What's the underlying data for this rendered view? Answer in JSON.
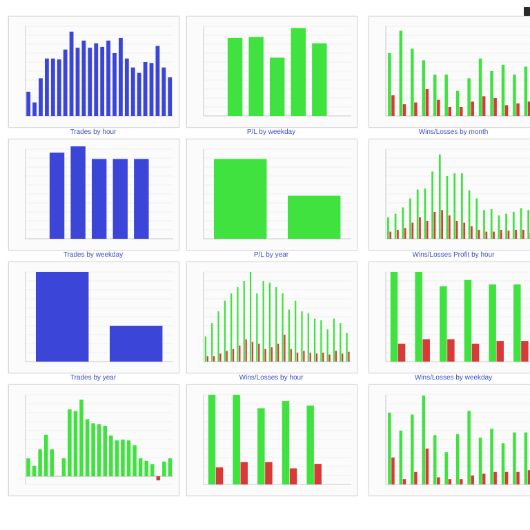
{
  "colors": {
    "blue": "#3b46d9",
    "green": "#3fe23f",
    "red": "#d83a3a",
    "caption": "#3a4fc0",
    "grid": "#e4e4e4"
  },
  "corner_icon": "window-control-icon",
  "panels": [
    {
      "caption": "Trades by hour"
    },
    {
      "caption": "P/L by weekday"
    },
    {
      "caption": "Wins/Losses by month"
    },
    {
      "caption": "Trades by weekday"
    },
    {
      "caption": "P/L by year"
    },
    {
      "caption": "Wins/Losses Profit by hour"
    },
    {
      "caption": "Trades by year"
    },
    {
      "caption": "Wins/Losses by hour"
    },
    {
      "caption": "Wins/Losses by weekday"
    },
    {
      "caption": ""
    },
    {
      "caption": ""
    },
    {
      "caption": ""
    }
  ],
  "chart_data": [
    {
      "type": "bar",
      "ylim": [
        0,
        100
      ],
      "colors": [
        "#3b46d9"
      ],
      "series": [
        {
          "values": [
            27,
            15,
            42,
            64,
            64,
            63,
            74,
            94,
            76,
            84,
            76,
            81,
            77,
            84,
            70,
            87,
            64,
            54,
            48,
            60,
            59,
            78,
            54,
            43
          ]
        }
      ]
    },
    {
      "type": "bar",
      "ylim": [
        0,
        100
      ],
      "colors": [
        "#3fe23f"
      ],
      "series": [
        {
          "values": [
            0,
            87,
            88,
            65,
            98,
            81,
            0
          ]
        }
      ]
    },
    {
      "type": "bar",
      "ylim": [
        0,
        100
      ],
      "colors": [
        "#3fe23f",
        "#d83a3a"
      ],
      "series": [
        {
          "values": [
            70,
            95,
            75,
            62,
            46,
            46,
            28,
            42,
            64,
            50,
            57,
            46,
            55
          ]
        },
        {
          "values": [
            23,
            13,
            15,
            30,
            18,
            10,
            10,
            16,
            22,
            20,
            12,
            14,
            16
          ]
        }
      ]
    },
    {
      "type": "bar",
      "ylim": [
        0,
        100
      ],
      "colors": [
        "#3b46d9"
      ],
      "series": [
        {
          "values": [
            0,
            96,
            103,
            89,
            89,
            89,
            0
          ]
        }
      ]
    },
    {
      "type": "bar",
      "ylim": [
        0,
        100
      ],
      "colors": [
        "#3fe23f"
      ],
      "series": [
        {
          "values": [
            89,
            48
          ]
        }
      ]
    },
    {
      "type": "bar",
      "ylim": [
        0,
        100
      ],
      "colors": [
        "#3fe23f",
        "#d83a3a"
      ],
      "series": [
        {
          "values": [
            24,
            28,
            35,
            45,
            55,
            56,
            75,
            94,
            70,
            73,
            73,
            54,
            45,
            32,
            33,
            26,
            28,
            30,
            34,
            32
          ]
        },
        {
          "values": [
            8,
            10,
            12,
            18,
            24,
            20,
            30,
            32,
            26,
            20,
            18,
            14,
            10,
            8,
            8,
            10,
            9,
            10,
            10,
            6
          ]
        }
      ]
    },
    {
      "type": "bar",
      "ylim": [
        0,
        100
      ],
      "colors": [
        "#3b46d9"
      ],
      "series": [
        {
          "values": [
            100,
            40
          ]
        }
      ]
    },
    {
      "type": "bar",
      "ylim": [
        0,
        100
      ],
      "colors": [
        "#3fe23f",
        "#d83a3a"
      ],
      "series": [
        {
          "values": [
            28,
            43,
            56,
            68,
            76,
            83,
            90,
            100,
            76,
            90,
            88,
            83,
            76,
            58,
            68,
            56,
            54,
            48,
            46,
            36,
            48,
            43,
            32
          ]
        },
        {
          "values": [
            6,
            6,
            9,
            12,
            14,
            18,
            25,
            22,
            20,
            14,
            16,
            20,
            30,
            14,
            10,
            12,
            10,
            9,
            10,
            8,
            12,
            9,
            11
          ]
        }
      ]
    },
    {
      "type": "bar",
      "ylim": [
        0,
        100
      ],
      "colors": [
        "#3fe23f",
        "#d83a3a"
      ],
      "series": [
        {
          "values": [
            100,
            100,
            84,
            91,
            86,
            86
          ]
        },
        {
          "values": [
            20,
            25,
            25,
            20,
            23,
            23
          ]
        }
      ]
    },
    {
      "type": "bar",
      "ylim": [
        -10,
        100
      ],
      "colors": [
        "#3fe23f",
        "#d83a3a"
      ],
      "series": [
        {
          "values": [
            22,
            13,
            33,
            51,
            33,
            0,
            22,
            82,
            80,
            94,
            70,
            65,
            64,
            62,
            50,
            44,
            45,
            44,
            38,
            22,
            19,
            15,
            -5,
            18,
            22
          ]
        }
      ]
    },
    {
      "type": "bar",
      "ylim": [
        0,
        100
      ],
      "colors": [
        "#3fe23f",
        "#d83a3a"
      ],
      "series": [
        {
          "values": [
            100,
            100,
            85,
            93,
            88,
            0
          ]
        },
        {
          "values": [
            19,
            25,
            25,
            18,
            23,
            0
          ]
        }
      ]
    },
    {
      "type": "bar",
      "ylim": [
        0,
        100
      ],
      "colors": [
        "#3fe23f",
        "#d83a3a"
      ],
      "series": [
        {
          "values": [
            80,
            60,
            78,
            99,
            55,
            36,
            56,
            82,
            52,
            62,
            46,
            58,
            58
          ]
        },
        {
          "values": [
            30,
            6,
            14,
            40,
            8,
            6,
            6,
            10,
            12,
            14,
            14,
            14,
            16
          ]
        }
      ]
    }
  ]
}
